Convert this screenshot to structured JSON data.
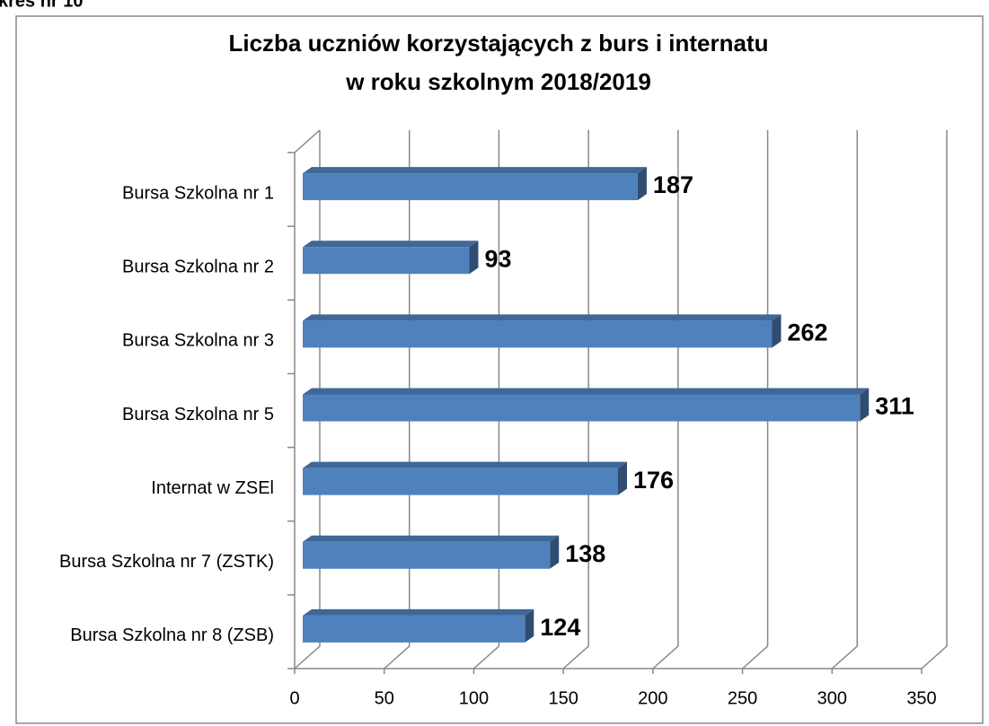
{
  "caption": "kres nr 10",
  "chart_data": {
    "type": "bar3d_horizontal",
    "title": [
      "Liczba uczniów korzystających z burs i internatu",
      "w roku szkolnym 2018/2019"
    ],
    "categories": [
      "Bursa Szkolna nr 1",
      "Bursa Szkolna nr 2",
      "Bursa Szkolna nr 3",
      "Bursa Szkolna nr 5",
      "Internat w ZSEl",
      "Bursa Szkolna nr 7 (ZSTK)",
      "Bursa Szkolna nr 8 (ZSB)"
    ],
    "values": [
      187,
      93,
      262,
      311,
      176,
      138,
      124
    ],
    "color": "#4f81bd",
    "xlim": [
      0,
      350
    ],
    "xticks": [
      0,
      50,
      100,
      150,
      200,
      250,
      300,
      350
    ],
    "grid": true
  }
}
